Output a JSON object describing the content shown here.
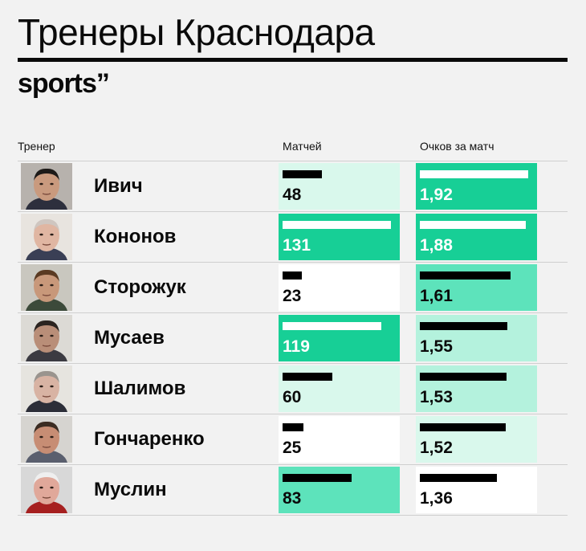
{
  "title": "Тренеры Краснодара",
  "brand": "sports”",
  "headers": {
    "coach": "Тренер",
    "matches": "Матчей",
    "points": "Очков за матч"
  },
  "colors": {
    "dark_green": "#17cf96",
    "medium_green": "#5de3bb",
    "light_green": "#b4f2dd",
    "pale_green": "#d9f8ec",
    "white_cell": "#ffffff",
    "bar_dark": "#000000",
    "bar_light": "#ffffff"
  },
  "chart_data": {
    "type": "table",
    "columns": [
      "Тренер",
      "Матчей",
      "Очков за матч"
    ],
    "rows": [
      {
        "coach": "Ивич",
        "matches": 48,
        "matches_label": "48",
        "points": 1.92,
        "points_label": "1,92"
      },
      {
        "coach": "Кононов",
        "matches": 131,
        "matches_label": "131",
        "points": 1.88,
        "points_label": "1,88"
      },
      {
        "coach": "Сторожук",
        "matches": 23,
        "matches_label": "23",
        "points": 1.61,
        "points_label": "1,61"
      },
      {
        "coach": "Мусаев",
        "matches": 119,
        "matches_label": "119",
        "points": 1.55,
        "points_label": "1,55"
      },
      {
        "coach": "Шалимов",
        "matches": 60,
        "matches_label": "60",
        "points": 1.53,
        "points_label": "1,53"
      },
      {
        "coach": "Гончаренко",
        "matches": 25,
        "matches_label": "25",
        "points": 1.52,
        "points_label": "1,52"
      },
      {
        "coach": "Муслин",
        "matches": 83,
        "matches_label": "83",
        "points": 1.36,
        "points_label": "1,36"
      }
    ]
  }
}
